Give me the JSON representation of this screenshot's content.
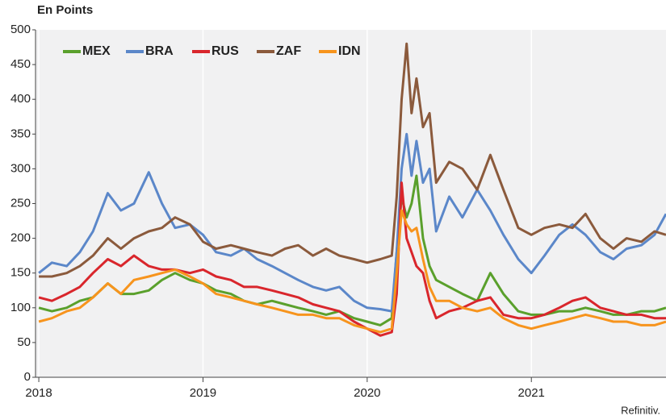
{
  "chart_data": {
    "type": "line",
    "unit_label": "En Points",
    "source": "Refinitiv.",
    "x": [
      2018.0,
      2018.08,
      2018.17,
      2018.25,
      2018.33,
      2018.42,
      2018.5,
      2018.58,
      2018.67,
      2018.75,
      2018.83,
      2018.92,
      2019.0,
      2019.08,
      2019.17,
      2019.25,
      2019.33,
      2019.42,
      2019.5,
      2019.58,
      2019.67,
      2019.75,
      2019.83,
      2019.92,
      2020.0,
      2020.08,
      2020.15,
      2020.18,
      2020.21,
      2020.24,
      2020.27,
      2020.3,
      2020.34,
      2020.38,
      2020.42,
      2020.5,
      2020.58,
      2020.67,
      2020.75,
      2020.83,
      2020.92,
      2021.0,
      2021.08,
      2021.17,
      2021.25,
      2021.33,
      2021.42,
      2021.5,
      2021.58,
      2021.67,
      2021.75,
      2021.82
    ],
    "series": [
      {
        "name": "MEX",
        "color": "#5aa02c",
        "values": [
          100,
          95,
          100,
          110,
          115,
          135,
          120,
          120,
          125,
          140,
          150,
          140,
          135,
          125,
          120,
          110,
          105,
          110,
          105,
          100,
          95,
          90,
          95,
          85,
          80,
          75,
          85,
          180,
          260,
          230,
          250,
          290,
          200,
          160,
          140,
          130,
          120,
          110,
          150,
          120,
          95,
          90,
          90,
          95,
          95,
          100,
          95,
          90,
          90,
          95,
          95,
          100
        ]
      },
      {
        "name": "BRA",
        "color": "#5b87c9",
        "values": [
          150,
          165,
          160,
          180,
          210,
          265,
          240,
          250,
          295,
          250,
          215,
          220,
          205,
          180,
          175,
          185,
          170,
          160,
          150,
          140,
          130,
          125,
          130,
          110,
          100,
          98,
          95,
          180,
          300,
          350,
          290,
          340,
          280,
          300,
          210,
          260,
          230,
          270,
          240,
          205,
          170,
          150,
          175,
          205,
          220,
          205,
          180,
          170,
          185,
          190,
          205,
          235
        ]
      },
      {
        "name": "RUS",
        "color": "#d9262c",
        "values": [
          115,
          110,
          120,
          130,
          150,
          170,
          160,
          175,
          160,
          155,
          155,
          150,
          155,
          145,
          140,
          130,
          130,
          125,
          120,
          115,
          105,
          100,
          95,
          80,
          70,
          60,
          65,
          120,
          280,
          200,
          180,
          160,
          150,
          110,
          85,
          95,
          100,
          110,
          115,
          90,
          85,
          85,
          90,
          100,
          110,
          115,
          100,
          95,
          90,
          90,
          85,
          85
        ]
      },
      {
        "name": "ZAF",
        "color": "#8b5a3c",
        "values": [
          145,
          145,
          150,
          160,
          175,
          200,
          185,
          200,
          210,
          215,
          230,
          220,
          195,
          185,
          190,
          185,
          180,
          175,
          185,
          190,
          175,
          185,
          175,
          170,
          165,
          170,
          175,
          260,
          400,
          480,
          380,
          430,
          360,
          380,
          280,
          310,
          300,
          270,
          320,
          270,
          215,
          205,
          215,
          220,
          215,
          235,
          200,
          185,
          200,
          195,
          210,
          205
        ]
      },
      {
        "name": "IDN",
        "color": "#f7941d",
        "values": [
          80,
          85,
          95,
          100,
          115,
          135,
          120,
          140,
          145,
          150,
          155,
          145,
          135,
          120,
          115,
          110,
          105,
          100,
          95,
          90,
          90,
          85,
          85,
          75,
          70,
          65,
          70,
          150,
          240,
          220,
          210,
          215,
          170,
          130,
          110,
          110,
          100,
          95,
          100,
          85,
          75,
          70,
          75,
          80,
          85,
          90,
          85,
          80,
          80,
          75,
          75,
          80
        ]
      }
    ],
    "xlim": [
      2017.98,
      2021.82
    ],
    "xticks": [
      2018,
      2019,
      2020,
      2021
    ],
    "ylim": [
      0,
      500
    ],
    "yticks": [
      0,
      50,
      100,
      150,
      200,
      250,
      300,
      350,
      400,
      450,
      500
    ],
    "grid": true,
    "legend": "top-left"
  }
}
